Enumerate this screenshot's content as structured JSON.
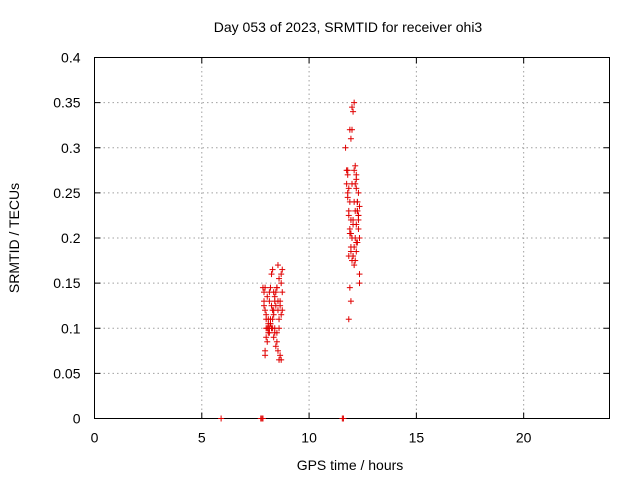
{
  "chart_data": {
    "type": "scatter",
    "title": "Day 053 of 2023, SRMTID for receiver ohi3",
    "xlabel": "GPS time / hours",
    "ylabel": "SRMTID / TECUs",
    "xlim": [
      0,
      24
    ],
    "ylim": [
      0,
      0.4
    ],
    "xticks": [
      0,
      5,
      10,
      15,
      20
    ],
    "yticks": [
      0,
      0.05,
      0.1,
      0.15,
      0.2,
      0.25,
      0.3,
      0.35,
      0.4
    ],
    "ytick_labels": [
      "0",
      "0.05",
      "0.1",
      "0.15",
      "0.2",
      "0.25",
      "0.3",
      "0.35",
      "0.4"
    ],
    "grid": true,
    "marker": "plus",
    "color": "#e00000",
    "series": [
      {
        "x": [
          5.9,
          7.75,
          7.8,
          7.85,
          11.55,
          11.6,
          7.85,
          7.9,
          7.95,
          8.0,
          8.05,
          8.1,
          8.15,
          8.2,
          8.25,
          8.3,
          8.35,
          8.4,
          8.45,
          8.5,
          8.55,
          8.6,
          8.65,
          8.7,
          8.75,
          7.9,
          8.0,
          8.1,
          8.2,
          8.3,
          8.4,
          8.5,
          8.6,
          8.7,
          8.75,
          8.65,
          8.55,
          8.45,
          8.35,
          8.25,
          8.15,
          8.05,
          7.95,
          7.95,
          8.05,
          8.15,
          8.25,
          8.35,
          8.45,
          8.55,
          8.65,
          8.7,
          8.6,
          8.5,
          8.4,
          8.3,
          8.2,
          8.1,
          8.0,
          7.9,
          8.0,
          8.1,
          8.2,
          8.3,
          8.4,
          8.5,
          8.6,
          8.7,
          8.75,
          8.55,
          8.35,
          8.15,
          7.95,
          11.7,
          11.75,
          11.8,
          11.85,
          11.9,
          11.95,
          12.0,
          12.05,
          12.1,
          12.15,
          12.2,
          12.25,
          12.3,
          12.35,
          11.75,
          11.8,
          11.85,
          11.9,
          11.95,
          12.0,
          12.05,
          12.1,
          12.15,
          12.2,
          12.25,
          12.3,
          12.35,
          11.8,
          11.85,
          11.9,
          11.95,
          12.0,
          12.05,
          12.1,
          12.15,
          12.2,
          12.25,
          12.3,
          11.85,
          11.9,
          11.95,
          12.0,
          12.05,
          12.1,
          12.15,
          12.2,
          12.25,
          12.3,
          12.35,
          11.9,
          11.95,
          12.0,
          12.1,
          12.2,
          12.3,
          11.95,
          12.05,
          12.15,
          12.25,
          11.85,
          12.35,
          11.8,
          12.0,
          12.2
        ],
        "y": [
          0.0,
          0.0,
          0.0,
          0.0,
          0.0,
          0.0,
          0.145,
          0.14,
          0.12,
          0.115,
          0.1,
          0.11,
          0.13,
          0.145,
          0.16,
          0.165,
          0.14,
          0.13,
          0.125,
          0.145,
          0.12,
          0.11,
          0.13,
          0.15,
          0.14,
          0.13,
          0.09,
          0.095,
          0.105,
          0.1,
          0.095,
          0.085,
          0.1,
          0.115,
          0.12,
          0.07,
          0.075,
          0.08,
          0.09,
          0.1,
          0.095,
          0.085,
          0.075,
          0.145,
          0.135,
          0.14,
          0.125,
          0.12,
          0.14,
          0.13,
          0.125,
          0.16,
          0.155,
          0.145,
          0.135,
          0.12,
          0.11,
          0.105,
          0.1,
          0.125,
          0.11,
          0.1,
          0.105,
          0.11,
          0.1,
          0.095,
          0.065,
          0.065,
          0.165,
          0.17,
          0.115,
          0.1,
          0.07,
          0.3,
          0.275,
          0.25,
          0.23,
          0.21,
          0.19,
          0.2,
          0.22,
          0.24,
          0.26,
          0.265,
          0.24,
          0.22,
          0.2,
          0.26,
          0.245,
          0.225,
          0.205,
          0.185,
          0.175,
          0.18,
          0.19,
          0.2,
          0.215,
          0.23,
          0.25,
          0.235,
          0.27,
          0.255,
          0.24,
          0.22,
          0.2,
          0.18,
          0.17,
          0.175,
          0.185,
          0.195,
          0.21,
          0.18,
          0.145,
          0.13,
          0.32,
          0.34,
          0.35,
          0.28,
          0.27,
          0.23,
          0.225,
          0.16,
          0.32,
          0.31,
          0.26,
          0.275,
          0.255,
          0.225,
          0.205,
          0.215,
          0.23,
          0.24,
          0.11,
          0.15,
          0.275,
          0.345,
          0.195
        ]
      }
    ]
  }
}
